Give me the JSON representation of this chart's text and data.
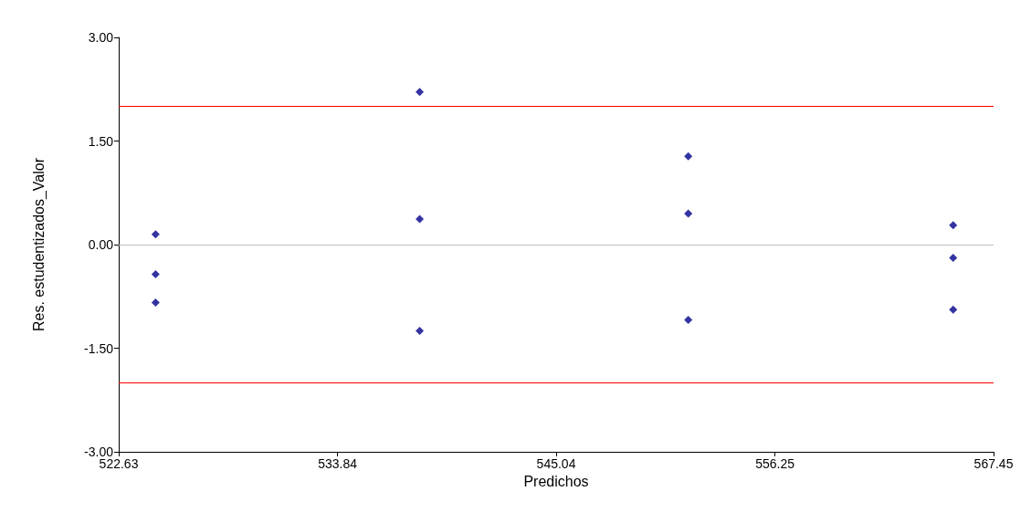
{
  "chart_data": {
    "type": "scatter",
    "xlabel": "Predichos",
    "ylabel": "Res. estudentizados_Valor",
    "x": [
      524.52,
      524.52,
      524.52,
      538.05,
      538.05,
      538.05,
      551.81,
      551.81,
      551.81,
      565.38,
      565.38,
      565.38
    ],
    "values": [
      0.15,
      -0.43,
      -0.84,
      2.21,
      0.37,
      -1.25,
      1.28,
      0.45,
      -1.09,
      0.28,
      -0.19,
      -0.94
    ],
    "color": "#00008b",
    "marker": "diamond",
    "grid": false,
    "xlim": [
      522.63,
      567.45
    ],
    "xticks": [
      522.63,
      533.84,
      545.04,
      556.25,
      567.45
    ],
    "ylim": [
      -3,
      3
    ],
    "yticks": [
      {
        "value": -3,
        "label": "-3.00"
      },
      {
        "value": -1.5,
        "label": "-1.50"
      },
      {
        "value": 0,
        "label": "0.00"
      },
      {
        "value": 1.5,
        "label": "1.50"
      },
      {
        "value": 3,
        "label": "3.00"
      }
    ],
    "ref_lines": [
      {
        "axis": "y",
        "value": 2,
        "color": "#ff0000"
      },
      {
        "axis": "y",
        "value": -2,
        "color": "#ff0000"
      },
      {
        "axis": "y",
        "value": 0,
        "color": "#c0c0c0"
      }
    ]
  }
}
